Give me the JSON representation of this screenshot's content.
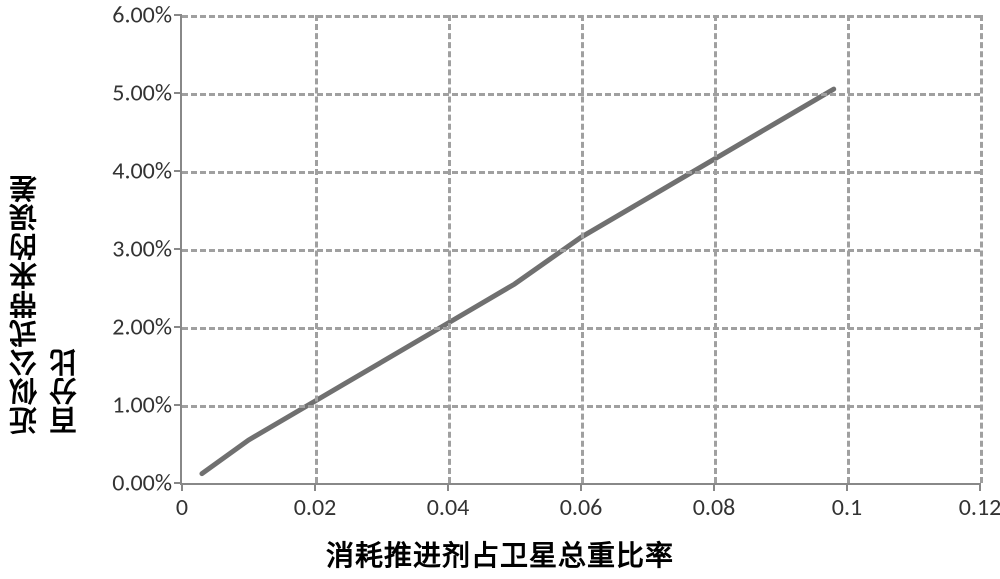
{
  "chart": {
    "type": "line",
    "y_axis_title": "近似公式带来的误差百分比",
    "x_axis_title": "消耗推进剂占卫星总重比率",
    "title_fontsize": 28,
    "tick_fontsize": 24,
    "background_color": "#ffffff",
    "grid_color": "#a0a0a0",
    "axis_color": "#888888",
    "line_color": "#707070",
    "line_width": 5,
    "xlim": [
      0,
      0.12
    ],
    "ylim": [
      0,
      6
    ],
    "xticks": [
      0,
      0.02,
      0.04,
      0.06,
      0.08,
      0.1,
      0.12
    ],
    "xtick_labels": [
      "0",
      "0.02",
      "0.04",
      "0.06",
      "0.08",
      "0.1",
      "0.12"
    ],
    "yticks": [
      0,
      1,
      2,
      3,
      4,
      5,
      6
    ],
    "ytick_labels": [
      "0.00%",
      "1.00%",
      "2.00%",
      "3.00%",
      "4.00%",
      "5.00%",
      "6.00%"
    ],
    "grid_x": [
      0.02,
      0.04,
      0.06,
      0.08,
      0.1,
      0.12
    ],
    "grid_y": [
      1,
      2,
      3,
      4,
      5,
      6
    ],
    "series": {
      "x": [
        0.003,
        0.01,
        0.02,
        0.03,
        0.04,
        0.05,
        0.055,
        0.06,
        0.07,
        0.08,
        0.09,
        0.098
      ],
      "y": [
        0.12,
        0.55,
        1.05,
        1.55,
        2.05,
        2.55,
        2.85,
        3.15,
        3.65,
        4.15,
        4.65,
        5.05
      ]
    }
  }
}
